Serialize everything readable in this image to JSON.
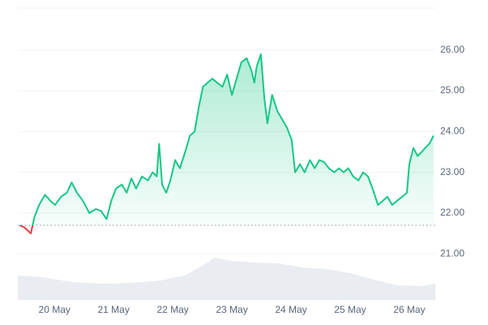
{
  "chart_data": {
    "type": "line",
    "x": [
      19.41,
      19.49,
      19.6,
      19.66,
      19.74,
      19.84,
      19.93,
      20.01,
      20.11,
      20.21,
      20.29,
      20.38,
      20.48,
      20.59,
      20.7,
      20.79,
      20.88,
      20.96,
      21.04,
      21.14,
      21.22,
      21.3,
      21.38,
      21.48,
      21.58,
      21.66,
      21.73,
      21.77,
      21.82,
      21.89,
      21.96,
      22.04,
      22.12,
      22.21,
      22.29,
      22.37,
      22.44,
      22.51,
      22.59,
      22.67,
      22.75,
      22.84,
      22.92,
      23.0,
      23.08,
      23.16,
      23.25,
      23.33,
      23.38,
      23.42,
      23.49,
      23.55,
      23.6,
      23.68,
      23.77,
      23.85,
      23.93,
      24.01,
      24.07,
      24.15,
      24.23,
      24.32,
      24.4,
      24.48,
      24.56,
      24.64,
      24.73,
      24.81,
      24.89,
      24.97,
      25.05,
      25.14,
      25.22,
      25.3,
      25.38,
      25.47,
      25.55,
      25.63,
      25.71,
      25.79,
      25.88,
      25.96,
      26.0,
      26.07,
      26.14,
      26.21,
      26.27,
      26.34,
      26.41
    ],
    "series": [
      {
        "color": "#16c784",
        "values": [
          21.7,
          21.65,
          21.5,
          21.9,
          22.2,
          22.45,
          22.3,
          22.2,
          22.4,
          22.5,
          22.75,
          22.5,
          22.3,
          22.0,
          22.1,
          22.05,
          21.85,
          22.3,
          22.6,
          22.7,
          22.5,
          22.85,
          22.6,
          22.9,
          22.8,
          23.0,
          22.9,
          23.7,
          22.7,
          22.5,
          22.8,
          23.3,
          23.1,
          23.5,
          23.9,
          24.0,
          24.6,
          25.1,
          25.2,
          25.3,
          25.2,
          25.1,
          25.4,
          24.9,
          25.3,
          25.7,
          25.8,
          25.5,
          25.2,
          25.6,
          25.9,
          24.8,
          24.2,
          24.9,
          24.5,
          24.3,
          24.1,
          23.8,
          23.0,
          23.2,
          23.0,
          23.3,
          23.1,
          23.3,
          23.25,
          23.1,
          23.0,
          23.1,
          23.0,
          23.1,
          22.9,
          22.8,
          23.0,
          22.9,
          22.6,
          22.2,
          22.3,
          22.4,
          22.2,
          22.3,
          22.4,
          22.5,
          23.2,
          23.6,
          23.4,
          23.5,
          23.6,
          23.7,
          23.9
        ]
      }
    ],
    "baseline": 21.7,
    "below_color": "#ea3943",
    "volume": {
      "color": "#e9ecf1",
      "x": [
        19.38,
        19.8,
        20.3,
        20.8,
        21.3,
        21.8,
        22.2,
        22.5,
        22.7,
        23.0,
        23.4,
        23.8,
        24.2,
        24.6,
        25.0,
        25.4,
        25.8,
        26.2,
        26.44
      ],
      "values": [
        30,
        28,
        22,
        20,
        21,
        24,
        30,
        42,
        52,
        48,
        46,
        45,
        40,
        38,
        33,
        25,
        18,
        17,
        20
      ]
    },
    "y2lim": [
      0,
      100
    ],
    "xlim": [
      19.38,
      26.44
    ],
    "xticks": [
      {
        "value": 20,
        "label": "20 May"
      },
      {
        "value": 21,
        "label": "21 May"
      },
      {
        "value": 22,
        "label": "22 May"
      },
      {
        "value": 23,
        "label": "23 May"
      },
      {
        "value": 24,
        "label": "24 May"
      },
      {
        "value": 25,
        "label": "25 May"
      },
      {
        "value": 26,
        "label": "26 May"
      }
    ],
    "ylim": [
      19.87,
      27.03
    ],
    "yticks": [
      {
        "value": 21,
        "label": "21.00"
      },
      {
        "value": 22,
        "label": "22.00"
      },
      {
        "value": 23,
        "label": "23.00"
      },
      {
        "value": 24,
        "label": "24.00"
      },
      {
        "value": 25,
        "label": "25.00"
      },
      {
        "value": 26,
        "label": "26.00"
      }
    ],
    "grid": true
  }
}
